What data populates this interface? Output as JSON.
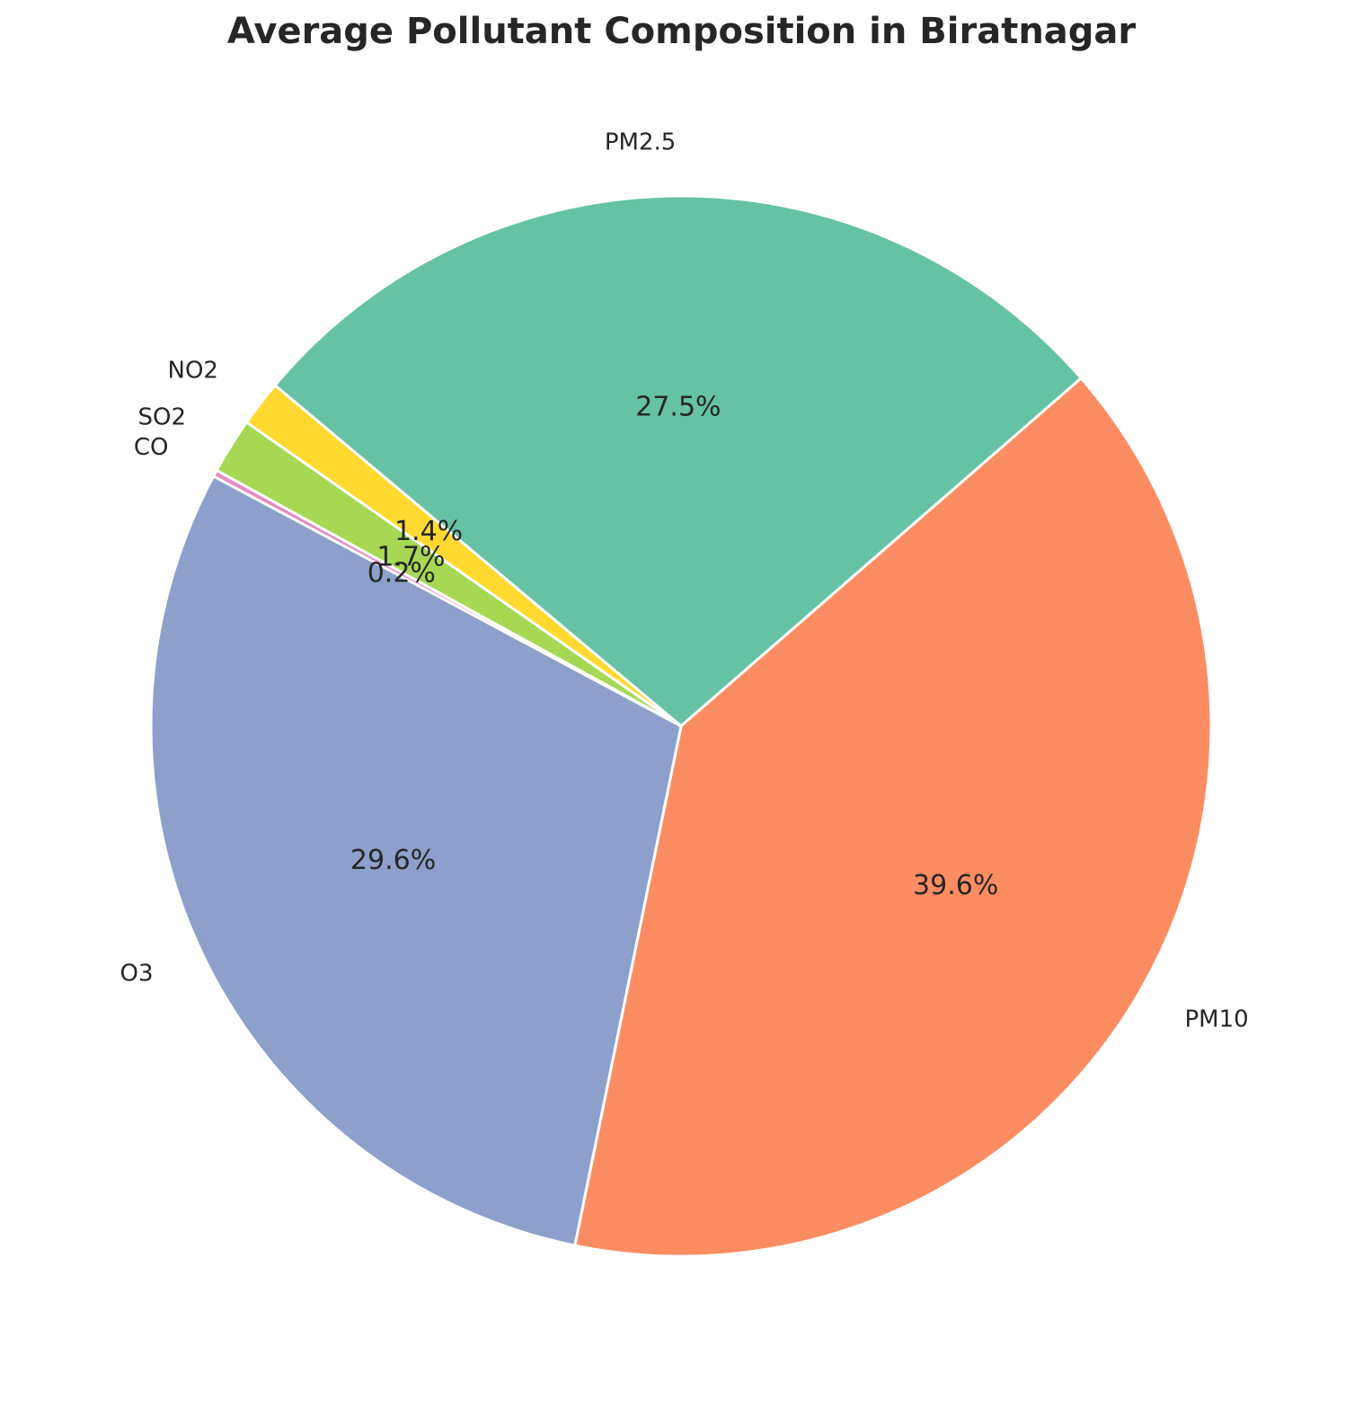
{
  "chart_data": {
    "type": "pie",
    "title": "Average Pollutant Composition in Biratnagar",
    "slices": [
      {
        "label": "PM2.5",
        "value": 27.5,
        "pct_label": "27.5%",
        "color": "#66c2a5"
      },
      {
        "label": "PM10",
        "value": 39.6,
        "pct_label": "39.6%",
        "color": "#fc8d62"
      },
      {
        "label": "O3",
        "value": 29.6,
        "pct_label": "29.6%",
        "color": "#8da0cb"
      },
      {
        "label": "CO",
        "value": 0.2,
        "pct_label": "0.2%",
        "color": "#e78ac3"
      },
      {
        "label": "SO2",
        "value": 1.7,
        "pct_label": "1.7%",
        "color": "#a6d854"
      },
      {
        "label": "NO2",
        "value": 1.4,
        "pct_label": "1.4%",
        "color": "#ffd92f"
      }
    ],
    "start_angle_deg": 140,
    "direction": "clockwise"
  }
}
